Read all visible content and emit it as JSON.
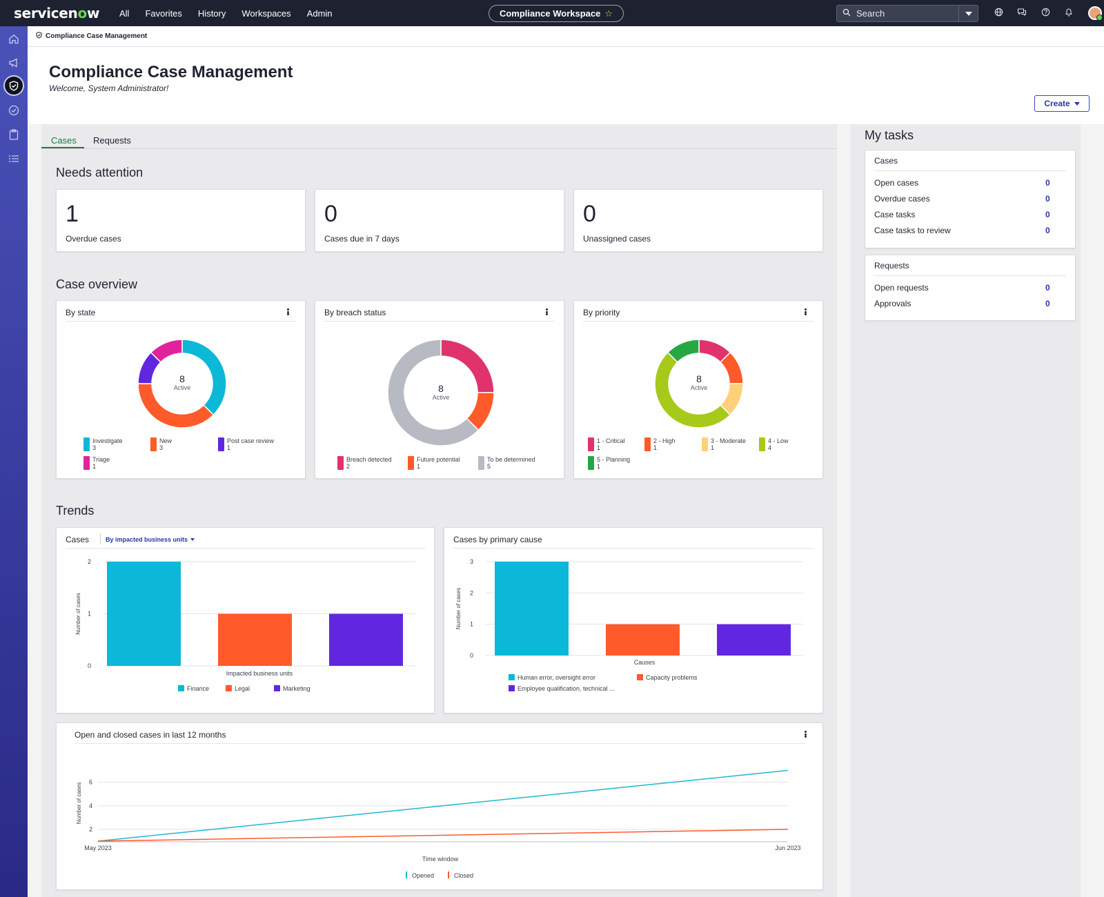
{
  "topnav": {
    "logo_a": "servicen",
    "logo_o": "o",
    "logo_b": "w",
    "menu": [
      "All",
      "Favorites",
      "History",
      "Workspaces",
      "Admin"
    ],
    "workspace": "Compliance Workspace",
    "search_placeholder": "Search"
  },
  "breadcrumb": "Compliance Case Management",
  "header": {
    "title": "Compliance Case Management",
    "welcome": "Welcome, System Administrator!",
    "create_label": "Create"
  },
  "tabs": [
    "Cases",
    "Requests"
  ],
  "needs_attention": {
    "title": "Needs attention",
    "cards": [
      {
        "value": "1",
        "label": "Overdue cases"
      },
      {
        "value": "0",
        "label": "Cases due in 7 days"
      },
      {
        "value": "0",
        "label": "Unassigned cases"
      }
    ]
  },
  "case_overview": {
    "title": "Case overview",
    "by_state": {
      "title": "By state",
      "center_value": "8",
      "center_label": "Active",
      "legend": [
        {
          "name": "Investigate",
          "count": "3",
          "color": "#0cb8d8"
        },
        {
          "name": "New",
          "count": "3",
          "color": "#ff5a2a"
        },
        {
          "name": "Post case review",
          "count": "1",
          "color": "#6127e0"
        },
        {
          "name": "Triage",
          "count": "1",
          "color": "#e0239c"
        }
      ]
    },
    "by_breach": {
      "title": "By breach status",
      "center_value": "8",
      "center_label": "Active",
      "legend": [
        {
          "name": "Breach detected",
          "count": "2",
          "color": "#e0336b"
        },
        {
          "name": "Future potential",
          "count": "1",
          "color": "#ff5a2a"
        },
        {
          "name": "To be determined",
          "count": "5",
          "color": "#b7bac3"
        }
      ]
    },
    "by_priority": {
      "title": "By priority",
      "center_value": "8",
      "center_label": "Active",
      "legend": [
        {
          "name": "1 - Critical",
          "count": "1",
          "color": "#e0336b"
        },
        {
          "name": "2 - High",
          "count": "1",
          "color": "#ff5a2a"
        },
        {
          "name": "3 - Moderate",
          "count": "1",
          "color": "#ffd07a"
        },
        {
          "name": "4 - Low",
          "count": "4",
          "color": "#a6c91a"
        },
        {
          "name": "5 - Planning",
          "count": "1",
          "color": "#27a744"
        }
      ]
    }
  },
  "trends": {
    "title": "Trends",
    "cases_card": {
      "title": "Cases",
      "filter_label": "By impacted business units"
    },
    "cause_card": {
      "title": "Cases by primary cause"
    },
    "line_card": {
      "title": "Open and closed cases in last 12 months"
    }
  },
  "my_tasks": {
    "title": "My tasks",
    "cases": {
      "heading": "Cases",
      "rows": [
        {
          "label": "Open cases",
          "count": "0"
        },
        {
          "label": "Overdue cases",
          "count": "0"
        },
        {
          "label": "Case tasks",
          "count": "0"
        },
        {
          "label": "Case tasks to review",
          "count": "0"
        }
      ]
    },
    "requests": {
      "heading": "Requests",
      "rows": [
        {
          "label": "Open requests",
          "count": "0"
        },
        {
          "label": "Approvals",
          "count": "0"
        }
      ]
    }
  },
  "chart_data": [
    {
      "type": "bar",
      "title": "Cases",
      "xlabel": "Impacted business units",
      "ylabel": "Number of cases",
      "categories": [
        "Finance",
        "Legal",
        "Marketing"
      ],
      "values": [
        2,
        1,
        1
      ],
      "colors": [
        "#0cb8d8",
        "#ff5a2a",
        "#6127e0"
      ],
      "ylim": [
        0,
        2
      ],
      "yticks": [
        "0",
        "1",
        "2"
      ]
    },
    {
      "type": "bar",
      "title": "Cases by primary cause",
      "xlabel": "Causes",
      "ylabel": "Number of cases",
      "categories": [
        "Human error, oversight error",
        "Capacity problems",
        "Employee qualification, technical ..."
      ],
      "values": [
        3,
        1,
        1
      ],
      "colors": [
        "#0cb8d8",
        "#ff5a2a",
        "#6127e0"
      ],
      "ylim": [
        0,
        3
      ],
      "yticks": [
        "0",
        "1",
        "2",
        "3"
      ]
    },
    {
      "type": "line",
      "title": "Open and closed cases in last 12 months",
      "xlabel": "Time window",
      "ylabel": "Number of cases",
      "x": [
        "May 2023",
        "Jun 2023"
      ],
      "series": [
        {
          "name": "Opened",
          "values": [
            1,
            7
          ],
          "color": "#1fb6d0"
        },
        {
          "name": "Closed",
          "values": [
            1,
            2
          ],
          "color": "#ff5a2a"
        }
      ],
      "ylim": [
        1,
        7.5
      ],
      "yticks": [
        "2",
        "4",
        "6"
      ]
    }
  ]
}
